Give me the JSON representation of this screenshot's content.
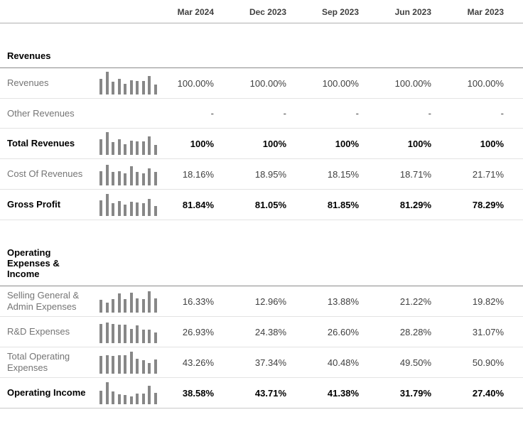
{
  "colors": {
    "row_label_text": "#757575",
    "value_text": "#404040",
    "bold_text": "#000000",
    "sparkline_bar": "#878787",
    "row_divider": "#e3e3e3",
    "section_divider": "#8a8a8a",
    "header_divider": "#b0b0b0"
  },
  "table": {
    "columns": [
      "Mar 2024",
      "Dec 2023",
      "Sep 2023",
      "Jun 2023",
      "Mar 2023"
    ],
    "sections": [
      {
        "title": "Revenues",
        "rows": [
          {
            "label": "Revenues",
            "bold": false,
            "sparkline": [
              68,
              100,
              55,
              70,
              48,
              63,
              60,
              58,
              80,
              44
            ],
            "values": [
              "100.00%",
              "100.00%",
              "100.00%",
              "100.00%",
              "100.00%"
            ]
          },
          {
            "label": "Other Revenues",
            "bold": false,
            "sparkline": null,
            "values": [
              "-",
              "-",
              "-",
              "-",
              "-"
            ]
          },
          {
            "label": "Total Revenues",
            "bold": true,
            "sparkline": [
              68,
              100,
              55,
              70,
              48,
              63,
              60,
              58,
              80,
              44
            ],
            "values": [
              "100%",
              "100%",
              "100%",
              "100%",
              "100%"
            ]
          },
          {
            "label": "Cost Of Revenues",
            "bold": false,
            "sparkline": [
              62,
              90,
              58,
              63,
              52,
              84,
              58,
              52,
              74,
              58
            ],
            "values": [
              "18.16%",
              "18.95%",
              "18.15%",
              "18.71%",
              "21.71%"
            ]
          },
          {
            "label": "Gross Profit",
            "bold": true,
            "sparkline": [
              70,
              97,
              57,
              66,
              50,
              62,
              58,
              55,
              76,
              45
            ],
            "values": [
              "81.84%",
              "81.05%",
              "81.85%",
              "81.29%",
              "78.29%"
            ]
          }
        ]
      },
      {
        "title": "Operating Expenses & Income",
        "rows": [
          {
            "label": "Selling General & Admin Expenses",
            "bold": false,
            "sparkline": [
              55,
              44,
              60,
              85,
              60,
              88,
              62,
              58,
              95,
              62
            ],
            "values": [
              "16.33%",
              "12.96%",
              "13.88%",
              "21.22%",
              "19.82%"
            ]
          },
          {
            "label": "R&D Expenses",
            "bold": false,
            "sparkline": [
              85,
              90,
              85,
              82,
              80,
              62,
              78,
              58,
              60,
              46
            ],
            "values": [
              "26.93%",
              "24.38%",
              "26.60%",
              "28.28%",
              "31.07%"
            ]
          },
          {
            "label": "Total Operating Expenses",
            "bold": false,
            "sparkline": [
              78,
              80,
              78,
              80,
              82,
              97,
              66,
              60,
              46,
              62
            ],
            "values": [
              "43.26%",
              "37.34%",
              "40.48%",
              "49.50%",
              "50.90%"
            ]
          },
          {
            "label": "Operating Income",
            "bold": true,
            "sparkline": [
              60,
              97,
              55,
              45,
              40,
              34,
              46,
              48,
              82,
              50
            ],
            "values": [
              "38.58%",
              "43.71%",
              "41.38%",
              "31.79%",
              "27.40%"
            ]
          }
        ]
      }
    ]
  }
}
